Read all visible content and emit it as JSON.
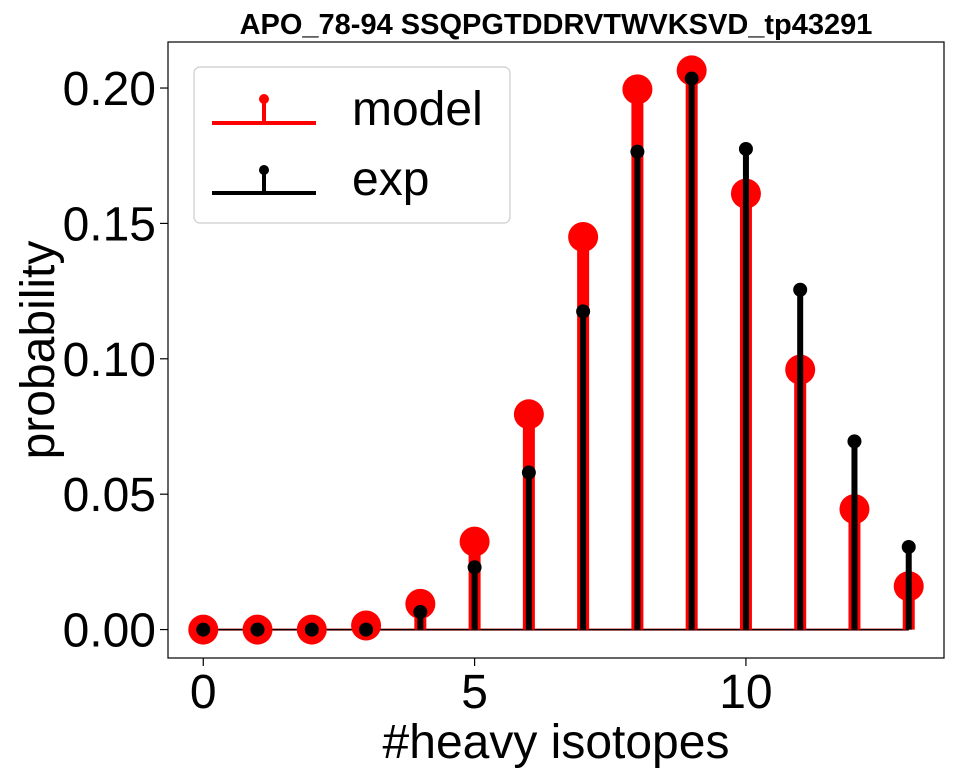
{
  "chart_data": {
    "type": "stem",
    "title": "APO_78-94 SSQPGTDDRVTWVKSVD_tp43291",
    "xlabel": "#heavy isotopes",
    "ylabel": "probability",
    "xlim": [
      -0.65,
      13.65
    ],
    "ylim": [
      -0.0105,
      0.217
    ],
    "xticks": [
      0,
      5,
      10
    ],
    "xtick_labels": [
      "0",
      "5",
      "10"
    ],
    "yticks": [
      0.0,
      0.05,
      0.1,
      0.15,
      0.2
    ],
    "ytick_labels": [
      "0.00",
      "0.05",
      "0.10",
      "0.15",
      "0.20"
    ],
    "grid": false,
    "legend_position": "top-left",
    "x": [
      0,
      1,
      2,
      3,
      4,
      5,
      6,
      7,
      8,
      9,
      10,
      11,
      12,
      13
    ],
    "series": [
      {
        "name": "model",
        "color": "#ff0000",
        "values": [
          0.0,
          0.0,
          0.0,
          0.0015,
          0.0095,
          0.0325,
          0.0795,
          0.145,
          0.1995,
          0.2065,
          0.161,
          0.096,
          0.0445,
          0.016
        ]
      },
      {
        "name": "exp",
        "color": "#000000",
        "values": [
          0.0,
          0.0,
          0.0,
          0.0,
          0.0065,
          0.023,
          0.058,
          0.1175,
          0.1765,
          0.2035,
          0.1775,
          0.1255,
          0.0695,
          0.0305
        ]
      }
    ]
  }
}
